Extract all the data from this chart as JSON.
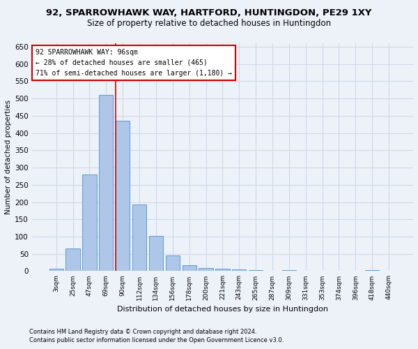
{
  "title1": "92, SPARROWHAWK WAY, HARTFORD, HUNTINGDON, PE29 1XY",
  "title2": "Size of property relative to detached houses in Huntingdon",
  "xlabel": "Distribution of detached houses by size in Huntingdon",
  "ylabel": "Number of detached properties",
  "categories": [
    "3sqm",
    "25sqm",
    "47sqm",
    "69sqm",
    "90sqm",
    "112sqm",
    "134sqm",
    "156sqm",
    "178sqm",
    "200sqm",
    "221sqm",
    "243sqm",
    "265sqm",
    "287sqm",
    "309sqm",
    "331sqm",
    "353sqm",
    "374sqm",
    "396sqm",
    "418sqm",
    "440sqm"
  ],
  "values": [
    8,
    65,
    280,
    510,
    435,
    192,
    102,
    46,
    18,
    10,
    7,
    5,
    4,
    0,
    3,
    0,
    0,
    0,
    0,
    3,
    0
  ],
  "bar_color": "#aec6e8",
  "bar_edge_color": "#5b9bd5",
  "grid_color": "#d0d8e8",
  "background_color": "#edf2f9",
  "vline_color": "#cc0000",
  "vline_x": 3.575,
  "annotation_line1": "92 SPARROWHAWK WAY: 96sqm",
  "annotation_line2": "← 28% of detached houses are smaller (465)",
  "annotation_line3": "71% of semi-detached houses are larger (1,180) →",
  "annotation_box_facecolor": "#ffffff",
  "annotation_box_edgecolor": "#cc0000",
  "ylim": [
    0,
    660
  ],
  "yticks": [
    0,
    50,
    100,
    150,
    200,
    250,
    300,
    350,
    400,
    450,
    500,
    550,
    600,
    650
  ],
  "footnote1": "Contains HM Land Registry data © Crown copyright and database right 2024.",
  "footnote2": "Contains public sector information licensed under the Open Government Licence v3.0.",
  "title1_fontsize": 9.5,
  "title2_fontsize": 8.5,
  "ylabel_fontsize": 7.5,
  "xlabel_fontsize": 8,
  "ytick_fontsize": 7.5,
  "xtick_fontsize": 6.5,
  "annot_fontsize": 7,
  "footnote_fontsize": 6
}
